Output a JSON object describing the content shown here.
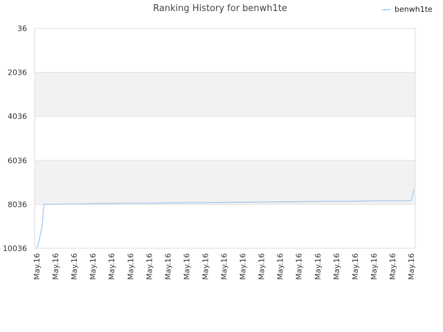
{
  "chart_data": {
    "type": "line",
    "title": "Ranking History for benwh1te",
    "xlabel": "",
    "ylabel": "",
    "y_inverted": true,
    "ylim": [
      36,
      10036
    ],
    "yticks": [
      36,
      2036,
      4036,
      6036,
      8036,
      10036
    ],
    "ytick_labels": [
      "36",
      "2036",
      "4036",
      "6036",
      "8036",
      "10036"
    ],
    "xtick_labels": [
      "May.16",
      "May.16",
      "May.16",
      "May.16",
      "May.16",
      "May.16",
      "May.16",
      "May.16",
      "May.16",
      "May.16",
      "May.16",
      "May.16",
      "May.16",
      "May.16",
      "May.16",
      "May.16",
      "May.16",
      "May.16",
      "May.16",
      "May.16",
      "May.16"
    ],
    "legend_position": "top-right",
    "grid": true,
    "series": [
      {
        "name": "benwh1te",
        "color": "#a4c8ef",
        "x": [
          0,
          0.1,
          0.2,
          0.3,
          0.35,
          0.4,
          1,
          1.5,
          2,
          2.5,
          3,
          3.5,
          4,
          4.5,
          5,
          5.5,
          6,
          6.5,
          7,
          7.5,
          8,
          8.5,
          9,
          9.5,
          10,
          10.5,
          11,
          11.5,
          12,
          12.5,
          13,
          13.5,
          14,
          14.5,
          15,
          15.5,
          16,
          16.5,
          17,
          17.5,
          18,
          18.5,
          19,
          19.5,
          20,
          20.15
        ],
        "values": [
          10036,
          9800,
          9400,
          9000,
          8300,
          8036,
          8036,
          8020,
          8020,
          8020,
          8000,
          8000,
          8000,
          7990,
          7990,
          7980,
          7980,
          7980,
          7970,
          7970,
          7960,
          7960,
          7960,
          7950,
          7950,
          7940,
          7940,
          7940,
          7930,
          7930,
          7920,
          7920,
          7920,
          7910,
          7910,
          7900,
          7900,
          7900,
          7890,
          7890,
          7880,
          7880,
          7870,
          7870,
          7870,
          7350
        ]
      }
    ]
  }
}
